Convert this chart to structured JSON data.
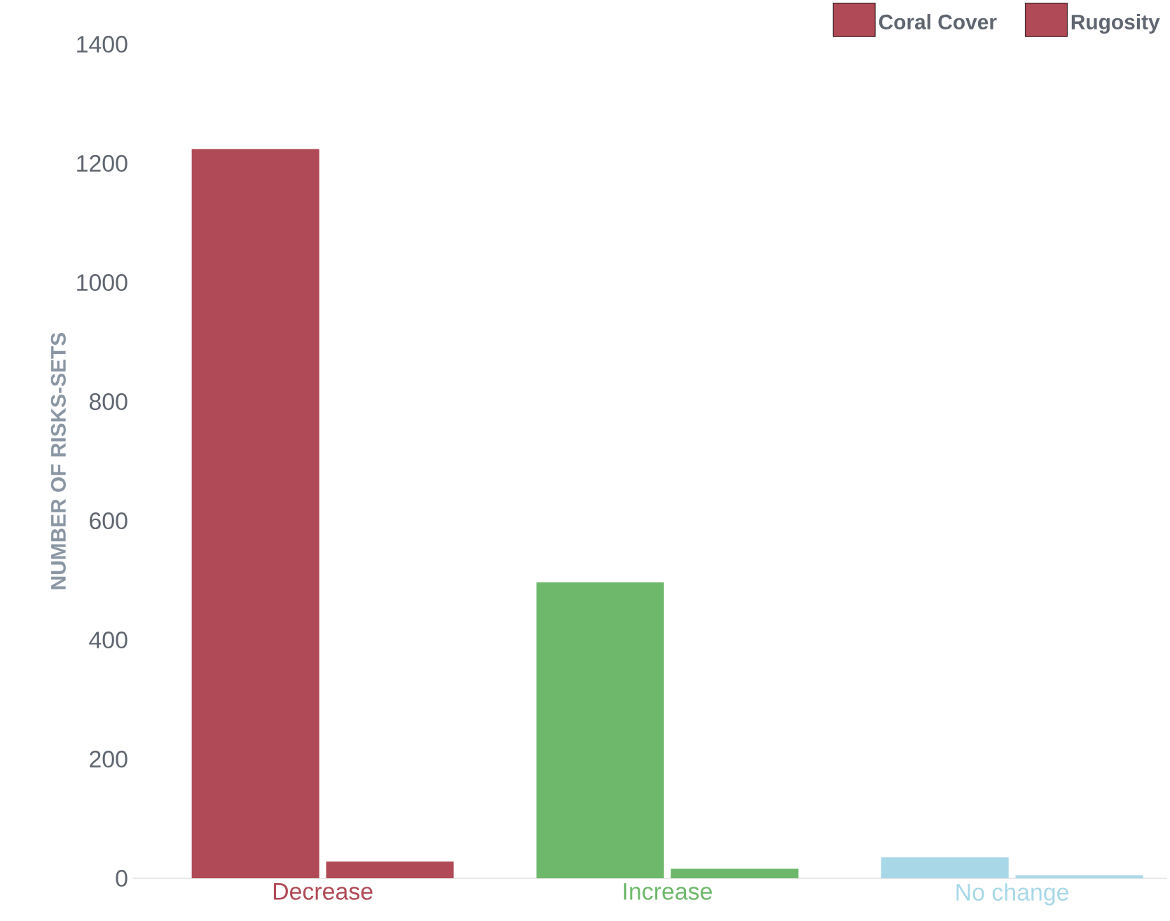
{
  "chart_data": {
    "type": "bar",
    "ylabel": "NUMBER OF RISKS-SETS",
    "categories": [
      "Decrease",
      "Increase",
      "No change"
    ],
    "series": [
      {
        "name": "Coral Cover",
        "colors": [
          "#b04a56",
          "#6db86a",
          "#a8d8e8"
        ],
        "values": [
          1224,
          497,
          35
        ]
      },
      {
        "name": "Rugosity",
        "colors": [
          "#b04a56",
          "#6db86a",
          "#a8d8e8"
        ],
        "values": [
          28,
          16,
          5
        ]
      }
    ],
    "ylim": [
      0,
      1400
    ],
    "yticks": [
      0,
      200,
      400,
      600,
      800,
      1000,
      1200,
      1400
    ],
    "grid": false,
    "legend": "top right"
  }
}
